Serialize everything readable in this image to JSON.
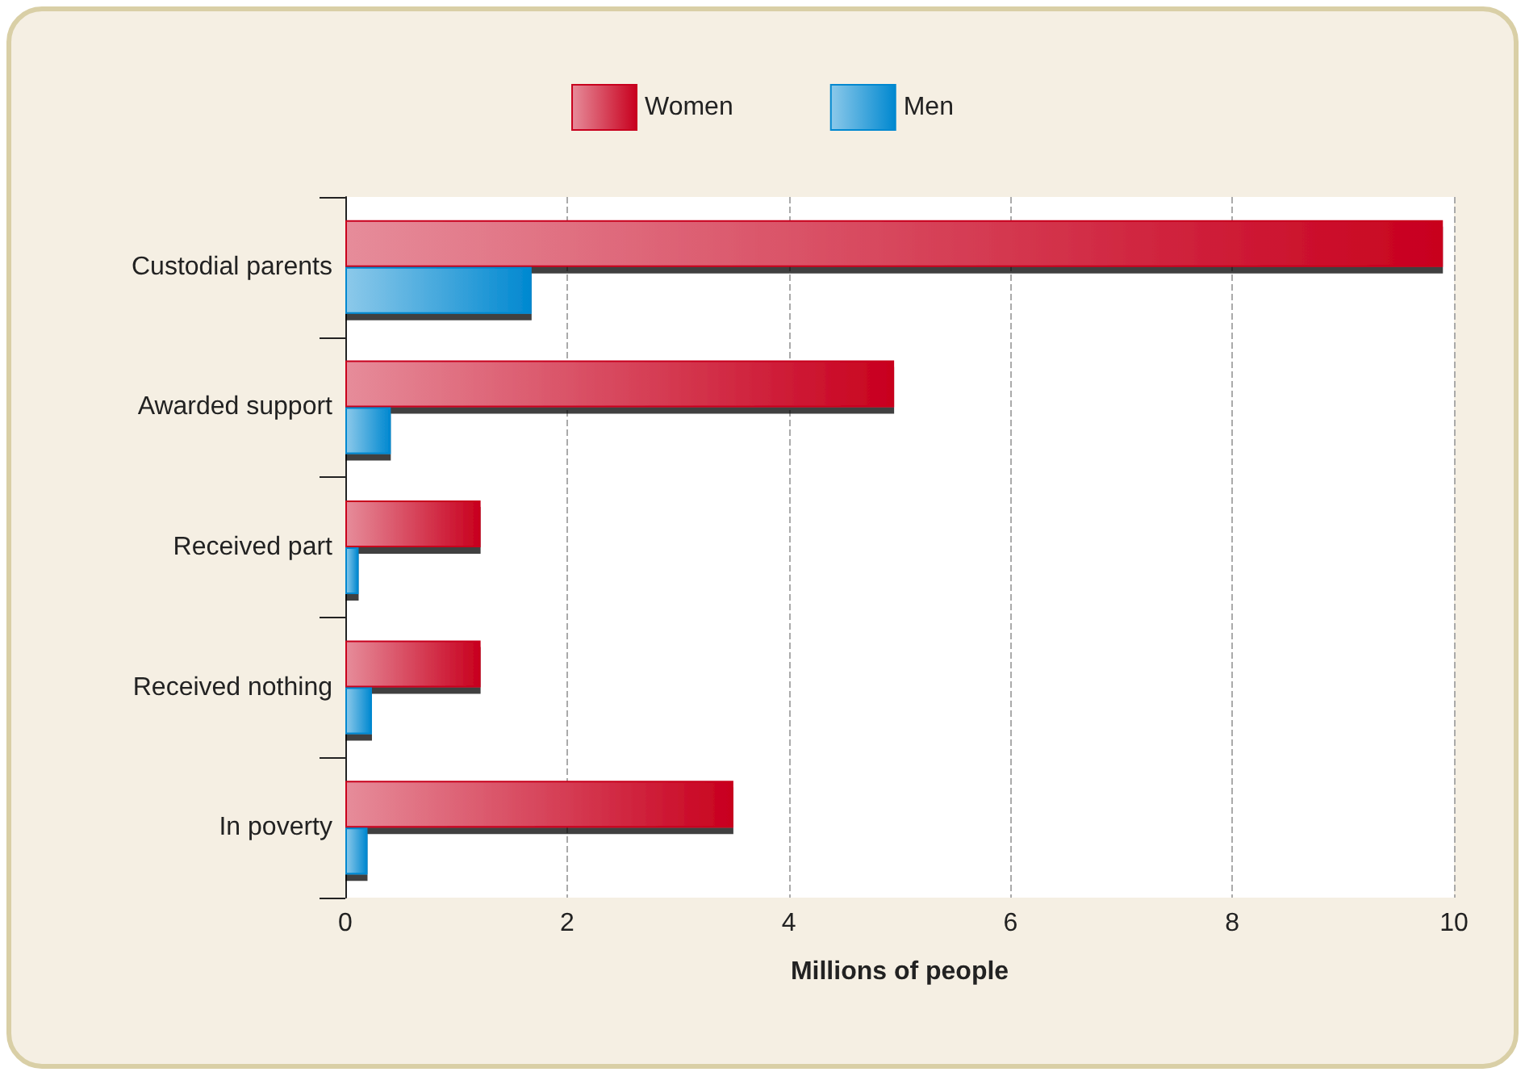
{
  "chart_data": {
    "type": "bar",
    "orientation": "horizontal",
    "xlabel": "Millions of people",
    "categories": [
      "Custodial parents",
      "Awarded support",
      "Received part",
      "Received nothing",
      "In poverty"
    ],
    "series": [
      {
        "name": "Women",
        "color": "#c8001e",
        "values": [
          9.9,
          4.95,
          1.22,
          1.22,
          3.5
        ]
      },
      {
        "name": "Men",
        "color": "#0088d0",
        "values": [
          1.68,
          0.41,
          0.12,
          0.24,
          0.2
        ]
      }
    ],
    "xlim": [
      0,
      10
    ],
    "xticks": [
      0,
      2,
      4,
      6,
      8,
      10
    ],
    "grid": "x",
    "legend": "top"
  }
}
